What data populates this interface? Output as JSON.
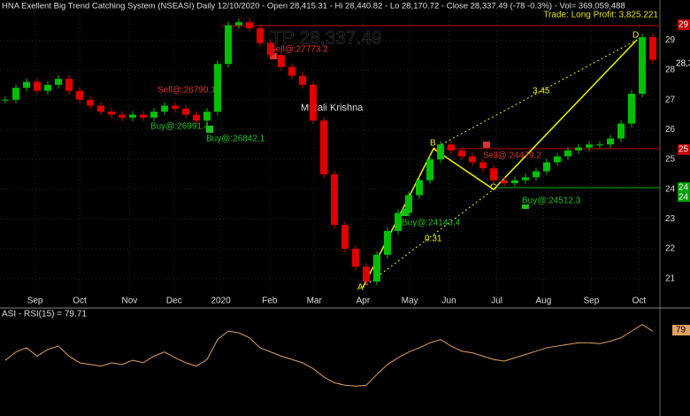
{
  "header": "HNA Exellent Big Trend Catching System (NSEASI) Daily  12/10/2020  -  Open 28,415.31  -  Hi 28,440.82  -  Lo 28,170.72  -  Close 28,337.49 (-78 -0.3%)  -  Vol= 369,059,488",
  "trade": "Trade: Long Profit: 3,825.221",
  "ltp": "LTP 28,337.49",
  "author": "Murali Krishna",
  "signals": [
    "Sell@:26790.1",
    "Buy@:26991.4",
    "Buy@:26842.1",
    "Sell@:27773.2",
    "Buy@:24143.4",
    "Sell@:24479.2",
    "Buy@:24512.3"
  ],
  "pattern": [
    "A",
    "B",
    "C",
    "D",
    "3.45",
    "0.31"
  ],
  "price_tags": [
    "28,3",
    "29",
    "25",
    "24",
    "24"
  ],
  "rsi_tag": "79",
  "chart_data": [
    {
      "type": "candlestick",
      "up_color": "#00c000",
      "down_color": "#e00000",
      "categories": [
        null,
        null,
        null,
        null,
        null,
        null,
        null,
        null,
        null,
        null,
        null,
        null,
        null,
        null,
        null,
        null,
        null,
        null,
        null,
        null,
        null,
        null,
        null,
        null,
        null,
        null,
        null,
        null,
        null,
        null,
        null,
        null,
        null,
        null,
        null,
        null,
        null,
        null,
        null,
        null,
        null,
        null,
        null,
        null,
        null,
        null,
        null,
        null,
        null,
        null,
        null,
        null,
        null,
        null,
        null,
        null,
        null,
        null,
        null,
        null,
        null,
        null
      ],
      "values": [
        27.0,
        27.4,
        27.6,
        27.3,
        27.5,
        27.7,
        27.3,
        27.0,
        26.8,
        26.6,
        26.5,
        26.4,
        26.5,
        26.4,
        26.6,
        26.8,
        26.7,
        26.5,
        26.3,
        26.6,
        28.2,
        29.5,
        29.6,
        29.4,
        28.9,
        28.5,
        28.1,
        27.8,
        27.5,
        26.3,
        24.5,
        22.8,
        22.0,
        21.4,
        20.9,
        21.8,
        22.6,
        23.2,
        23.8,
        24.3,
        25.0,
        25.5,
        25.3,
        25.1,
        24.9,
        24.7,
        24.3,
        24.2,
        24.3,
        24.4,
        24.6,
        24.9,
        25.1,
        25.3,
        25.4,
        25.5,
        25.5,
        25.7,
        26.2,
        27.2,
        29.1,
        28.33749
      ],
      "ylim": [
        20.4,
        29.9
      ],
      "yticks": [
        21,
        22,
        23,
        24,
        25,
        26,
        27,
        28,
        29
      ],
      "xlim": [
        0,
        62
      ],
      "xticks": [
        {
          "value": 3.3,
          "label": "Sep"
        },
        {
          "value": 7.5,
          "label": "Oct"
        },
        {
          "value": 12.2,
          "label": "Nov"
        },
        {
          "value": 16.4,
          "label": "Dec"
        },
        {
          "value": 20.8,
          "label": "2020"
        },
        {
          "value": 25.4,
          "label": "Feb"
        },
        {
          "value": 29.6,
          "label": "Mar"
        },
        {
          "value": 34.2,
          "label": "Apr"
        },
        {
          "value": 38.6,
          "label": "May"
        },
        {
          "value": 42.3,
          "label": "Jun"
        },
        {
          "value": 46.8,
          "label": "Jul"
        },
        {
          "value": 51.2,
          "label": "Aug"
        },
        {
          "value": 55.7,
          "label": "Sep"
        },
        {
          "value": 60.2,
          "label": "Oct"
        }
      ],
      "grid": true
    },
    {
      "type": "line",
      "title": "ASI - RSI(15) = 79.71",
      "color": "#e0a060",
      "values": [
        45,
        55,
        60,
        50,
        58,
        62,
        50,
        42,
        40,
        38,
        42,
        40,
        45,
        42,
        50,
        55,
        48,
        42,
        38,
        46,
        70,
        80,
        78,
        72,
        60,
        55,
        50,
        46,
        42,
        35,
        25,
        18,
        15,
        14,
        15,
        28,
        40,
        48,
        55,
        60,
        66,
        70,
        62,
        56,
        54,
        50,
        46,
        44,
        48,
        52,
        56,
        60,
        62,
        64,
        66,
        66,
        65,
        68,
        72,
        80,
        88,
        79.71
      ],
      "ylim": [
        10,
        95
      ],
      "xlim": [
        0,
        62
      ]
    }
  ]
}
